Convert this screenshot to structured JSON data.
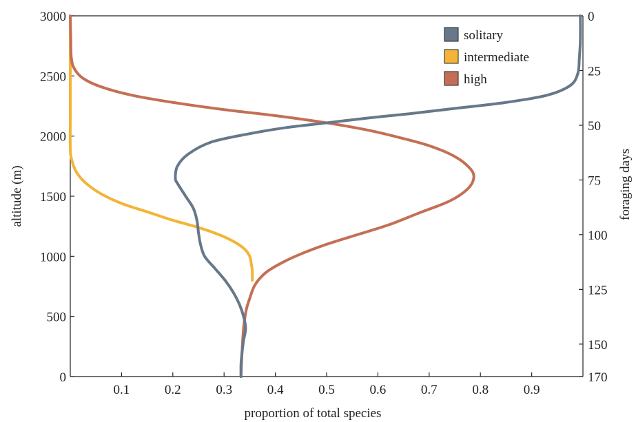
{
  "chart_data": {
    "type": "line",
    "xlabel": "proportion of total species",
    "ylabel": "altitude (m)",
    "y2label": "foraging days",
    "xlim": [
      0,
      1
    ],
    "ylim": [
      0,
      3000
    ],
    "x_ticks": [
      0.1,
      0.2,
      0.3,
      0.4,
      0.5,
      0.6,
      0.7,
      0.8,
      0.9
    ],
    "y_ticks": [
      0,
      500,
      1000,
      1500,
      2000,
      2500,
      3000
    ],
    "y2_ticks": [
      {
        "label": "0",
        "altitude": 3000
      },
      {
        "label": "25",
        "altitude": 2545
      },
      {
        "label": "50",
        "altitude": 2090
      },
      {
        "label": "75",
        "altitude": 1635
      },
      {
        "label": "100",
        "altitude": 1180
      },
      {
        "label": "125",
        "altitude": 725
      },
      {
        "label": "150",
        "altitude": 270
      },
      {
        "label": "170",
        "altitude": 0
      }
    ],
    "legend_position": "top-right",
    "grid": false,
    "series": [
      {
        "name": "solitary",
        "color": "#66788a",
        "points": [
          [
            0.333,
            0
          ],
          [
            0.333,
            100
          ],
          [
            0.335,
            200
          ],
          [
            0.338,
            300
          ],
          [
            0.342,
            400
          ],
          [
            0.338,
            500
          ],
          [
            0.33,
            600
          ],
          [
            0.318,
            700
          ],
          [
            0.302,
            800
          ],
          [
            0.282,
            900
          ],
          [
            0.262,
            1000
          ],
          [
            0.254,
            1100
          ],
          [
            0.25,
            1200
          ],
          [
            0.247,
            1300
          ],
          [
            0.24,
            1400
          ],
          [
            0.225,
            1500
          ],
          [
            0.21,
            1600
          ],
          [
            0.205,
            1650
          ],
          [
            0.209,
            1750
          ],
          [
            0.23,
            1850
          ],
          [
            0.275,
            1950
          ],
          [
            0.35,
            2020
          ],
          [
            0.42,
            2070
          ],
          [
            0.5,
            2110
          ],
          [
            0.58,
            2150
          ],
          [
            0.66,
            2185
          ],
          [
            0.75,
            2230
          ],
          [
            0.85,
            2280
          ],
          [
            0.93,
            2340
          ],
          [
            0.975,
            2420
          ],
          [
            0.99,
            2520
          ],
          [
            0.993,
            2650
          ],
          [
            0.995,
            2800
          ],
          [
            0.995,
            3000
          ]
        ]
      },
      {
        "name": "intermediate",
        "color": "#f3b437",
        "points": [
          [
            0,
            3000
          ],
          [
            0,
            2200
          ],
          [
            0,
            1900
          ],
          [
            0.003,
            1800
          ],
          [
            0.012,
            1700
          ],
          [
            0.03,
            1610
          ],
          [
            0.06,
            1520
          ],
          [
            0.1,
            1440
          ],
          [
            0.15,
            1370
          ],
          [
            0.2,
            1300
          ],
          [
            0.25,
            1240
          ],
          [
            0.29,
            1180
          ],
          [
            0.32,
            1120
          ],
          [
            0.34,
            1060
          ],
          [
            0.35,
            1000
          ],
          [
            0.353,
            940
          ],
          [
            0.355,
            880
          ],
          [
            0.355,
            800
          ]
        ]
      },
      {
        "name": "high",
        "color": "#c46f55",
        "points": [
          [
            0.333,
            0
          ],
          [
            0.335,
            200
          ],
          [
            0.338,
            400
          ],
          [
            0.343,
            550
          ],
          [
            0.35,
            650
          ],
          [
            0.36,
            760
          ],
          [
            0.38,
            860
          ],
          [
            0.41,
            940
          ],
          [
            0.45,
            1020
          ],
          [
            0.5,
            1100
          ],
          [
            0.56,
            1180
          ],
          [
            0.62,
            1260
          ],
          [
            0.68,
            1360
          ],
          [
            0.74,
            1460
          ],
          [
            0.775,
            1560
          ],
          [
            0.787,
            1650
          ],
          [
            0.78,
            1730
          ],
          [
            0.75,
            1830
          ],
          [
            0.7,
            1920
          ],
          [
            0.64,
            1990
          ],
          [
            0.58,
            2050
          ],
          [
            0.5,
            2110
          ],
          [
            0.4,
            2170
          ],
          [
            0.3,
            2220
          ],
          [
            0.2,
            2280
          ],
          [
            0.12,
            2340
          ],
          [
            0.06,
            2410
          ],
          [
            0.025,
            2480
          ],
          [
            0.008,
            2560
          ],
          [
            0.002,
            2650
          ],
          [
            0.001,
            2800
          ],
          [
            0,
            3000
          ]
        ]
      }
    ]
  }
}
